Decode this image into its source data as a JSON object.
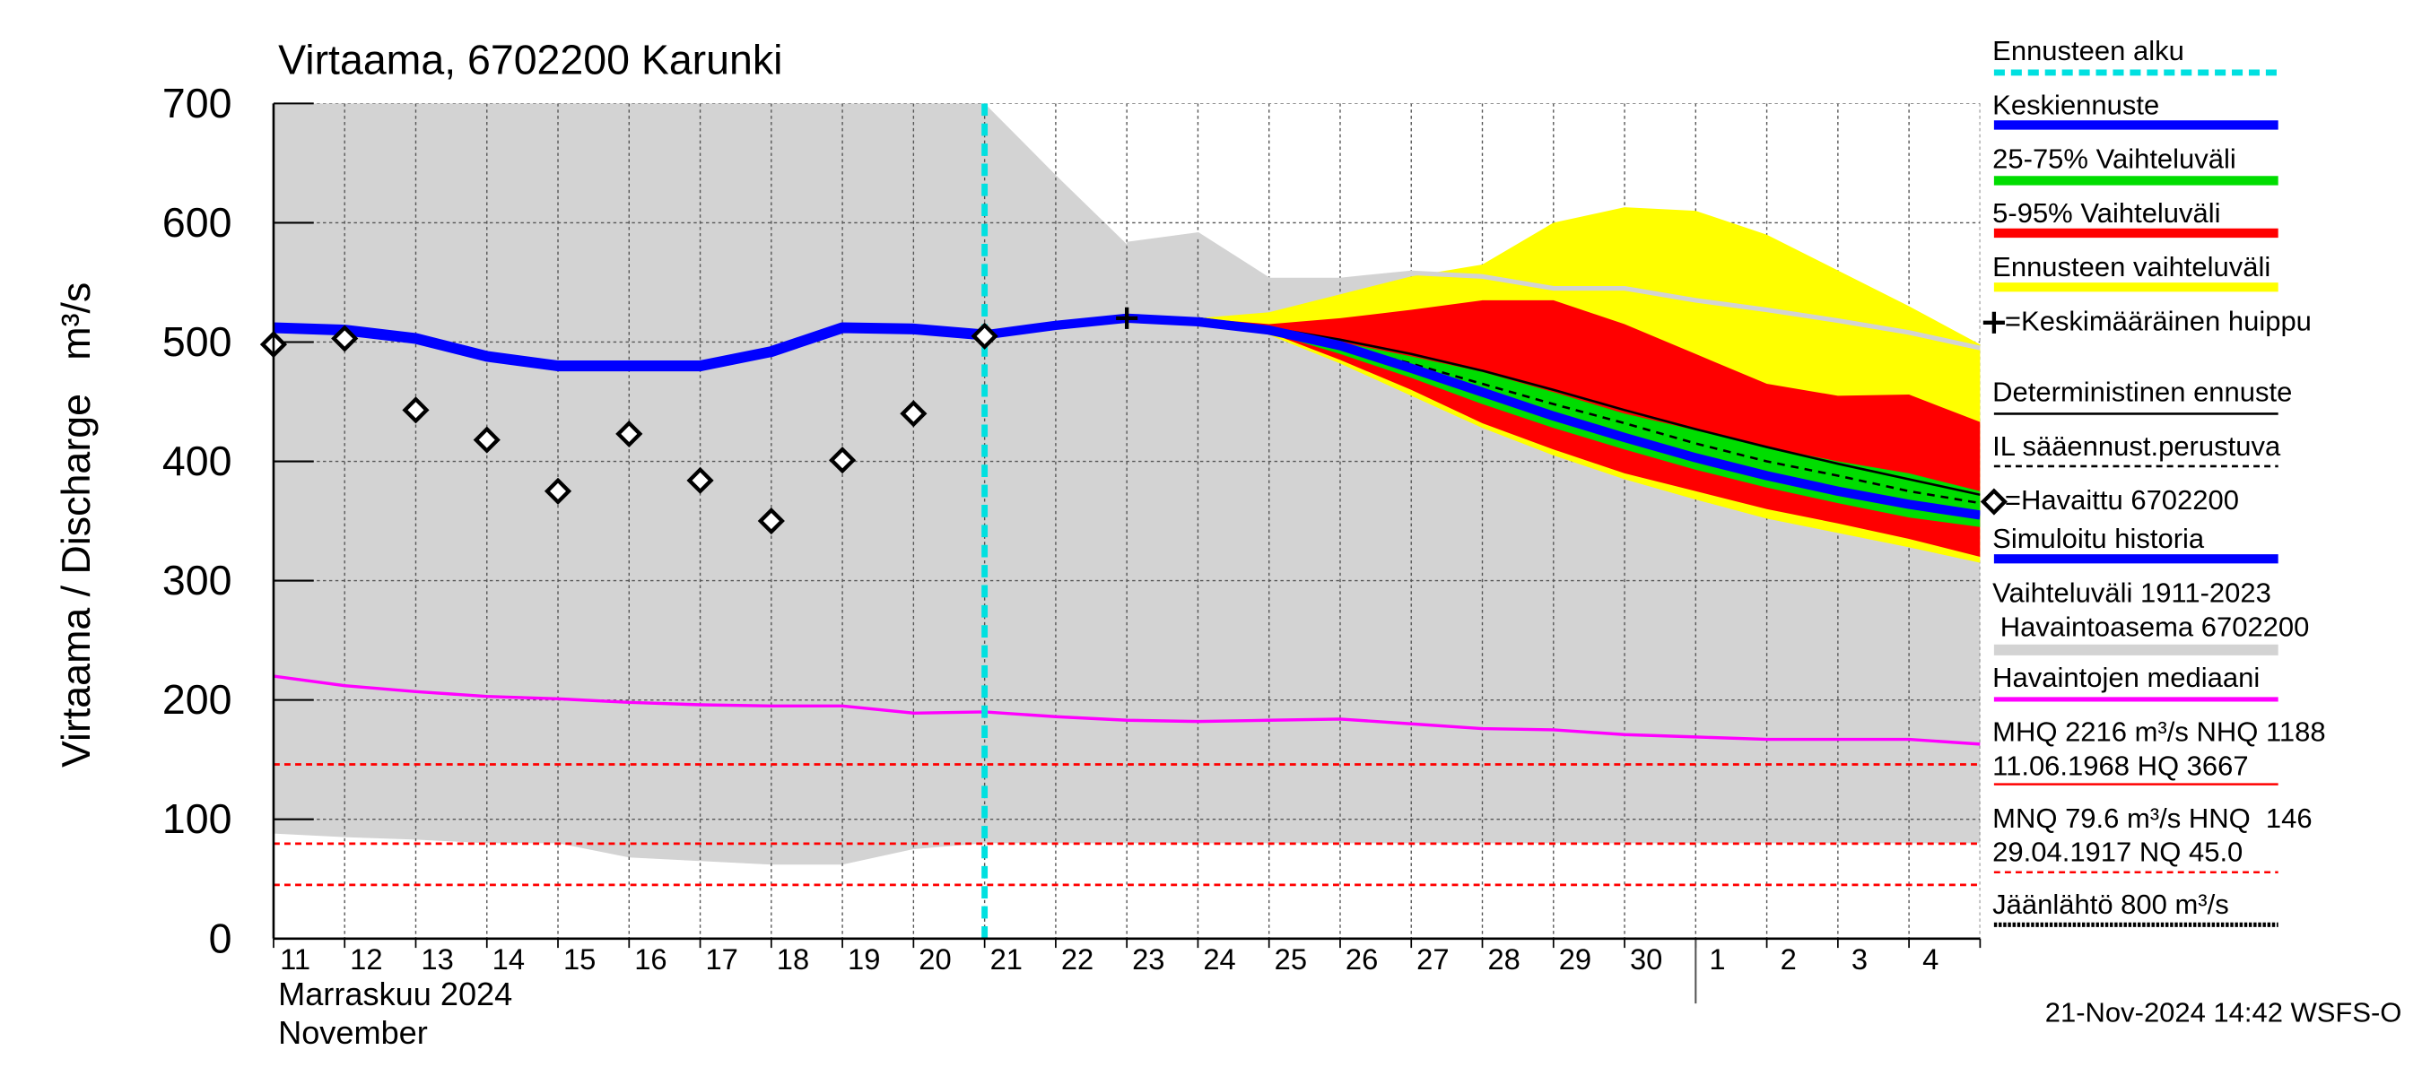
{
  "chart_data": {
    "type": "hydrograph",
    "title": "Virtaama, 6702200 Karunki",
    "y_label": "Virtaama / Discharge   m³/s",
    "month_label": "Marraskuu 2024",
    "month_label_en": "November",
    "timestamp": "21-Nov-2024 14:42 WSFS-O",
    "ylim": [
      0,
      700
    ],
    "yticks": [
      0,
      100,
      200,
      300,
      400,
      500,
      600,
      700
    ],
    "xlim": [
      0,
      24
    ],
    "xticks": [
      0,
      1,
      2,
      3,
      4,
      5,
      6,
      7,
      8,
      9,
      10,
      11,
      12,
      13,
      14,
      15,
      16,
      17,
      18,
      19,
      20,
      21,
      22,
      23,
      24
    ],
    "day_labels": [
      "11",
      "12",
      "13",
      "14",
      "15",
      "16",
      "17",
      "18",
      "19",
      "20",
      "21",
      "22",
      "23",
      "24",
      "25",
      "26",
      "27",
      "28",
      "29",
      "30",
      "1",
      "2",
      "3",
      "4"
    ],
    "month_break": 20,
    "x": [
      0,
      1,
      2,
      3,
      4,
      5,
      6,
      7,
      8,
      9,
      10,
      11,
      12,
      13,
      14,
      15,
      16,
      17,
      18,
      19,
      20,
      21,
      22,
      23,
      24
    ],
    "forecast_start": {
      "name": "Ennusteen alku",
      "color": "#00e0e0",
      "x": 10
    },
    "series": [
      {
        "name": "Vaihteluväli 1911-2023\n Havaintoasema 6702200",
        "kind": "band",
        "color": "#d3d3d3",
        "low": [
          88,
          85,
          83,
          80,
          80,
          68,
          65,
          62,
          62,
          75,
          80,
          80,
          80,
          80,
          80,
          80,
          80,
          80,
          80,
          80,
          80,
          80,
          80,
          80,
          80
        ],
        "high": [
          700,
          700,
          700,
          700,
          700,
          700,
          700,
          700,
          700,
          700,
          700,
          640,
          582,
          590,
          552,
          552,
          558,
          555,
          545,
          545,
          535,
          527,
          518,
          508,
          495
        ]
      },
      {
        "name": "Ennusteen vaihteluväli",
        "kind": "band",
        "color": "#ffff00",
        "low": [
          null,
          null,
          null,
          null,
          null,
          null,
          null,
          null,
          null,
          null,
          null,
          null,
          null,
          520,
          506,
          482,
          455,
          428,
          405,
          385,
          368,
          352,
          340,
          328,
          315
        ],
        "high": [
          null,
          null,
          null,
          null,
          null,
          null,
          null,
          null,
          null,
          null,
          null,
          null,
          null,
          520,
          525,
          540,
          555,
          565,
          600,
          613,
          610,
          590,
          560,
          530,
          498
        ]
      },
      {
        "name": "5-95% Vaihteluväli",
        "kind": "band",
        "color": "#ff0000",
        "low": [
          null,
          null,
          null,
          null,
          null,
          null,
          null,
          null,
          null,
          null,
          null,
          null,
          null,
          520,
          508,
          485,
          460,
          432,
          410,
          390,
          375,
          360,
          348,
          335,
          320
        ],
        "high": [
          null,
          null,
          null,
          null,
          null,
          null,
          null,
          null,
          null,
          null,
          null,
          null,
          null,
          520,
          515,
          520,
          527,
          535,
          535,
          515,
          490,
          465,
          455,
          456,
          433
        ]
      },
      {
        "name": "25-75% Vaihteluväli",
        "kind": "band",
        "color": "#00dd00",
        "low": [
          null,
          null,
          null,
          null,
          null,
          null,
          null,
          null,
          null,
          null,
          null,
          null,
          null,
          520,
          508,
          490,
          470,
          448,
          428,
          410,
          393,
          378,
          365,
          353,
          345
        ],
        "high": [
          null,
          null,
          null,
          null,
          null,
          null,
          null,
          null,
          null,
          null,
          null,
          null,
          null,
          520,
          512,
          500,
          488,
          475,
          458,
          440,
          426,
          412,
          400,
          390,
          375
        ]
      },
      {
        "name": "Havaintojen mediaani",
        "kind": "line",
        "color": "#ff00ff",
        "width": 2,
        "values": [
          220,
          212,
          207,
          203,
          201,
          198,
          196,
          195,
          195,
          189,
          190,
          186,
          183,
          182,
          183,
          184,
          180,
          176,
          175,
          171,
          169,
          167,
          167,
          167,
          163
        ]
      },
      {
        "name": "Deterministinen ennuste",
        "kind": "line",
        "color": "#000000",
        "width": 1.5,
        "values": [
          null,
          null,
          null,
          null,
          null,
          null,
          null,
          null,
          null,
          null,
          null,
          null,
          null,
          520,
          512,
          502,
          490,
          476,
          460,
          443,
          427,
          412,
          398,
          385,
          372
        ]
      },
      {
        "name": "IL sääennust.perustuva",
        "kind": "line",
        "color": "#000000",
        "width": 1.5,
        "dash": true,
        "values": [
          null,
          null,
          null,
          null,
          null,
          null,
          null,
          null,
          null,
          null,
          null,
          null,
          null,
          520,
          510,
          497,
          482,
          465,
          448,
          432,
          415,
          400,
          388,
          375,
          365
        ]
      },
      {
        "name": "Simuloitu historia",
        "kind": "line",
        "color": "#0000ff",
        "width": 7,
        "values": [
          512,
          510,
          503,
          488,
          480,
          480,
          480,
          492,
          512,
          511,
          506,
          null,
          null,
          null,
          null,
          null,
          null,
          null,
          null,
          null,
          null,
          null,
          null,
          null,
          null
        ]
      },
      {
        "name": "Keskiennuste",
        "kind": "line",
        "color": "#0000ff",
        "width": 6,
        "values": [
          null,
          null,
          null,
          null,
          null,
          null,
          null,
          null,
          null,
          null,
          506,
          514,
          520,
          517,
          510,
          497,
          478,
          458,
          438,
          420,
          403,
          388,
          375,
          364,
          355
        ]
      },
      {
        "name": "=Havaittu 6702200",
        "kind": "diamond",
        "color": "#000000",
        "values": [
          498,
          503,
          443,
          418,
          375,
          423,
          384,
          350,
          401,
          440,
          505,
          null,
          null,
          null,
          null,
          null,
          null,
          null,
          null,
          null,
          null,
          null,
          null,
          null,
          null
        ]
      },
      {
        "name": "=Keskimääräinen huippu",
        "kind": "plus",
        "color": "#000000",
        "values": [
          null,
          null,
          null,
          null,
          null,
          null,
          null,
          null,
          null,
          null,
          null,
          null,
          520,
          null,
          null,
          null,
          null,
          null,
          null,
          null,
          null,
          null,
          null,
          null,
          null
        ]
      }
    ],
    "hlines": [
      {
        "value": 146,
        "color": "#ff0000"
      },
      {
        "value": 79.6,
        "color": "#ff0000"
      },
      {
        "value": 45,
        "color": "#ff0000"
      }
    ],
    "stats_text": [
      "MHQ 2216 m³/s NHQ 1188",
      "11.06.1968 HQ 3667",
      "MNQ 79.6 m³/s HNQ  146",
      "29.04.1917 NQ 45.0"
    ],
    "ice_label": "Jäänlähtö 800 m³/s"
  }
}
